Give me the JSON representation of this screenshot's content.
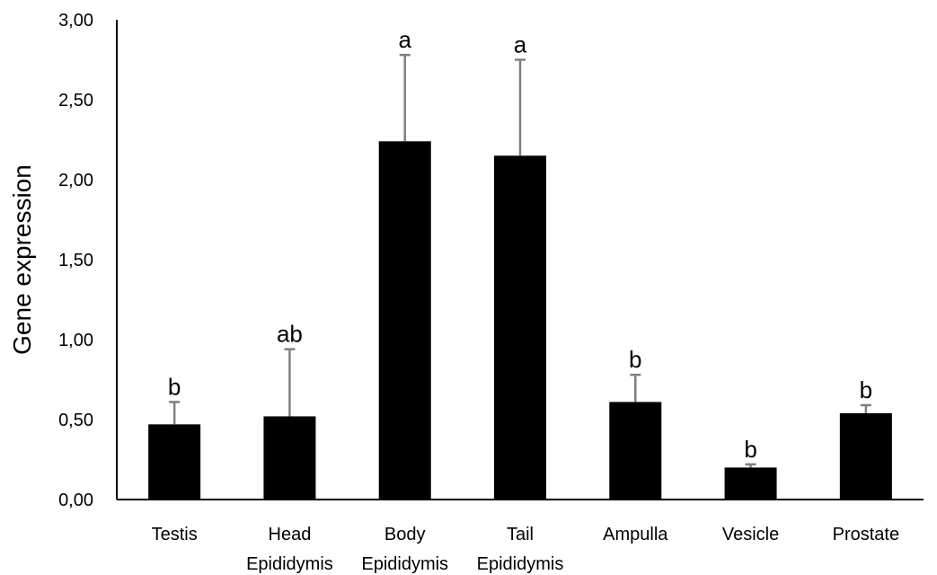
{
  "chart_data": {
    "type": "bar",
    "title": "",
    "xlabel": "",
    "ylabel": "Gene expression",
    "ylim": [
      0,
      3
    ],
    "yticks": [
      "0,00",
      "0,50",
      "1,00",
      "1,50",
      "2,00",
      "2,50",
      "3,00"
    ],
    "grid": false,
    "categories": [
      [
        "Testis"
      ],
      [
        "Head",
        "Epididymis"
      ],
      [
        "Body",
        "Epididymis"
      ],
      [
        "Tail",
        "Epididymis"
      ],
      [
        "Ampulla"
      ],
      [
        "Vesicle"
      ],
      [
        "Prostate"
      ]
    ],
    "values": [
      0.47,
      0.52,
      2.24,
      2.15,
      0.61,
      0.2,
      0.54
    ],
    "error_upper": [
      0.61,
      0.94,
      2.78,
      2.75,
      0.78,
      0.22,
      0.59
    ],
    "significance": [
      "b",
      "ab",
      "a",
      "a",
      "b",
      "b",
      "b"
    ],
    "colors": {
      "bar": "#000000",
      "error_bar": "#808080",
      "axis": "#000000"
    }
  }
}
